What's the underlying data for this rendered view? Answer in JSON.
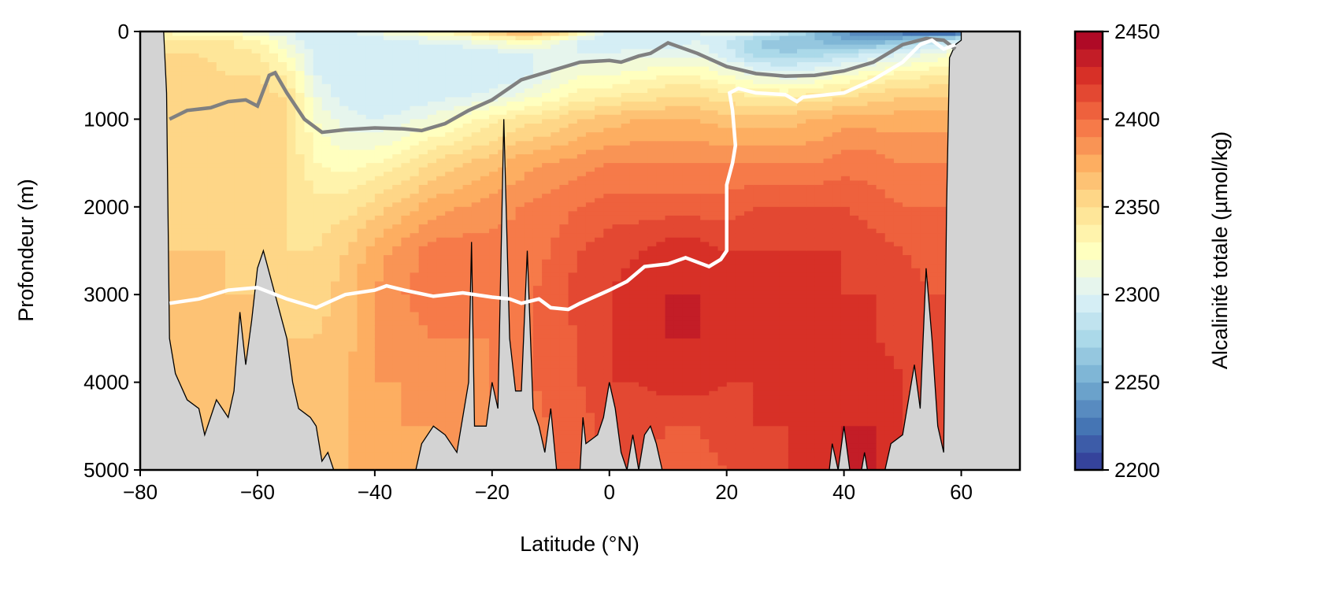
{
  "chart_data": {
    "type": "heatmap",
    "title": "",
    "xlabel": "Latitude (°N)",
    "ylabel": "Profondeur (m)",
    "colorbar_label": "Alcalinité totale (µmol/kg)",
    "xlim": [
      -80,
      70
    ],
    "ylim": [
      5000,
      0
    ],
    "xticks": [
      -80,
      -60,
      -40,
      -20,
      0,
      20,
      40,
      60
    ],
    "xtick_labels": [
      "−80",
      "−60",
      "−40",
      "−20",
      "0",
      "20",
      "40",
      "60"
    ],
    "yticks": [
      0,
      1000,
      2000,
      3000,
      4000,
      5000
    ],
    "ytick_labels": [
      "0",
      "1000",
      "2000",
      "3000",
      "4000",
      "5000"
    ],
    "clim": [
      2200,
      2450
    ],
    "level_step": 10,
    "cbar_ticks": [
      2200,
      2250,
      2300,
      2350,
      2400,
      2450
    ],
    "cbar_tick_labels": [
      "2200",
      "2250",
      "2300",
      "2350",
      "2400",
      "2450"
    ],
    "colormap": [
      "#313695",
      "#4575b4",
      "#74add1",
      "#abd9e9",
      "#e0f3f8",
      "#ffffbf",
      "#fee090",
      "#fdae61",
      "#f46d43",
      "#d73027",
      "#a50026"
    ],
    "land_color": "#d3d3d3",
    "grid_lat": [
      -76,
      -70,
      -65,
      -60,
      -55,
      -50,
      -45,
      -40,
      -35,
      -30,
      -25,
      -20,
      -15,
      -10,
      -5,
      0,
      5,
      10,
      15,
      20,
      25,
      30,
      35,
      40,
      45,
      50,
      55,
      59
    ],
    "grid_depth": [
      0,
      100,
      250,
      500,
      750,
      1000,
      1500,
      2000,
      2500,
      3000,
      3500,
      4000,
      4500,
      5000
    ],
    "values": [
      [
        2330,
        2340,
        2350,
        2355,
        2355,
        2355,
        2355,
        2355,
        2360,
        2360,
        2360,
        2360,
        2360,
        2360
      ],
      [
        2320,
        2340,
        2350,
        2355,
        2355,
        2355,
        2355,
        2355,
        2360,
        2360,
        2360,
        2360,
        2360,
        2360
      ],
      [
        2320,
        2340,
        2345,
        2350,
        2355,
        2355,
        2355,
        2355,
        2360,
        2360,
        2360,
        2360,
        2360,
        2360
      ],
      [
        2310,
        2330,
        2340,
        2350,
        2355,
        2355,
        2355,
        2355,
        2355,
        2360,
        2360,
        2360,
        2360,
        2360
      ],
      [
        2300,
        2310,
        2320,
        2340,
        2350,
        2350,
        2350,
        2350,
        2350,
        2355,
        2360,
        2360,
        2360,
        2360
      ],
      [
        2290,
        2290,
        2295,
        2300,
        2310,
        2320,
        2330,
        2345,
        2350,
        2355,
        2360,
        2365,
        2365,
        2365
      ],
      [
        2300,
        2290,
        2290,
        2290,
        2295,
        2305,
        2325,
        2345,
        2360,
        2365,
        2365,
        2370,
        2370,
        2370
      ],
      [
        2310,
        2295,
        2290,
        2290,
        2290,
        2300,
        2330,
        2355,
        2375,
        2380,
        2380,
        2380,
        2375,
        2370
      ],
      [
        2320,
        2300,
        2290,
        2290,
        2290,
        2305,
        2340,
        2365,
        2385,
        2390,
        2385,
        2380,
        2380,
        2375
      ],
      [
        2330,
        2305,
        2290,
        2290,
        2295,
        2315,
        2350,
        2375,
        2395,
        2395,
        2390,
        2385,
        2380,
        2380
      ],
      [
        2340,
        2310,
        2290,
        2290,
        2300,
        2325,
        2360,
        2380,
        2395,
        2395,
        2390,
        2385,
        2385,
        2385
      ],
      [
        2360,
        2320,
        2295,
        2290,
        2305,
        2335,
        2365,
        2385,
        2395,
        2395,
        2390,
        2390,
        2390,
        2390
      ],
      [
        2380,
        2330,
        2300,
        2295,
        2315,
        2345,
        2375,
        2390,
        2395,
        2395,
        2395,
        2395,
        2395,
        2395
      ],
      [
        2370,
        2320,
        2300,
        2310,
        2325,
        2350,
        2380,
        2395,
        2400,
        2405,
        2405,
        2405,
        2400,
        2400
      ],
      [
        2330,
        2300,
        2300,
        2320,
        2335,
        2360,
        2385,
        2400,
        2410,
        2415,
        2410,
        2410,
        2405,
        2405
      ],
      [
        2300,
        2290,
        2300,
        2320,
        2340,
        2365,
        2390,
        2405,
        2415,
        2420,
        2420,
        2420,
        2415,
        2410
      ],
      [
        2300,
        2290,
        2305,
        2325,
        2345,
        2370,
        2390,
        2405,
        2420,
        2425,
        2425,
        2420,
        2415,
        2410
      ],
      [
        2290,
        2290,
        2305,
        2330,
        2350,
        2370,
        2390,
        2405,
        2425,
        2430,
        2430,
        2425,
        2410,
        2405
      ],
      [
        2300,
        2300,
        2305,
        2330,
        2350,
        2370,
        2390,
        2405,
        2425,
        2430,
        2430,
        2425,
        2410,
        2405
      ],
      [
        2310,
        2290,
        2295,
        2320,
        2345,
        2365,
        2390,
        2405,
        2420,
        2425,
        2425,
        2420,
        2415,
        2410
      ],
      [
        2310,
        2270,
        2275,
        2310,
        2340,
        2365,
        2390,
        2410,
        2420,
        2420,
        2420,
        2420,
        2420,
        2415
      ],
      [
        2290,
        2260,
        2270,
        2305,
        2340,
        2365,
        2390,
        2410,
        2420,
        2425,
        2420,
        2420,
        2420,
        2420
      ],
      [
        2260,
        2260,
        2275,
        2310,
        2345,
        2370,
        2390,
        2410,
        2420,
        2425,
        2420,
        2420,
        2420,
        2425
      ],
      [
        2240,
        2250,
        2280,
        2320,
        2350,
        2375,
        2395,
        2410,
        2420,
        2420,
        2420,
        2425,
        2430,
        2430
      ],
      [
        2230,
        2250,
        2290,
        2330,
        2355,
        2375,
        2395,
        2405,
        2415,
        2420,
        2420,
        2430,
        2430,
        2430
      ],
      [
        2220,
        2260,
        2300,
        2335,
        2360,
        2375,
        2390,
        2400,
        2410,
        2415,
        2415,
        2420,
        2420,
        2420
      ],
      [
        2210,
        2280,
        2310,
        2340,
        2360,
        2375,
        2390,
        2400,
        2405,
        2410,
        2410,
        2410,
        2410,
        2410
      ],
      [
        2210,
        2290,
        2320,
        2340,
        2360,
        2375,
        2390,
        2400,
        2405,
        2410,
        2410,
        2410,
        2410,
        2410
      ]
    ],
    "bathymetry": [
      [
        -76,
        0
      ],
      [
        -75.5,
        700
      ],
      [
        -75,
        3500
      ],
      [
        -74,
        3900
      ],
      [
        -72,
        4200
      ],
      [
        -70,
        4300
      ],
      [
        -69,
        4600
      ],
      [
        -67,
        4200
      ],
      [
        -65,
        4400
      ],
      [
        -64,
        4100
      ],
      [
        -63,
        3200
      ],
      [
        -62,
        3800
      ],
      [
        -61,
        3300
      ],
      [
        -60,
        2700
      ],
      [
        -59,
        2500
      ],
      [
        -57,
        3000
      ],
      [
        -55,
        3500
      ],
      [
        -54,
        4000
      ],
      [
        -53,
        4300
      ],
      [
        -51,
        4400
      ],
      [
        -50,
        4500
      ],
      [
        -49,
        4900
      ],
      [
        -48,
        4800
      ],
      [
        -47,
        5000
      ],
      [
        -33,
        5000
      ],
      [
        -32,
        4700
      ],
      [
        -30,
        4500
      ],
      [
        -28,
        4600
      ],
      [
        -26,
        4800
      ],
      [
        -24,
        4000
      ],
      [
        -23.5,
        2400
      ],
      [
        -23,
        4500
      ],
      [
        -21,
        4500
      ],
      [
        -20,
        4000
      ],
      [
        -19,
        4300
      ],
      [
        -18,
        1000
      ],
      [
        -17,
        3500
      ],
      [
        -16,
        4100
      ],
      [
        -15,
        4100
      ],
      [
        -14,
        2500
      ],
      [
        -13,
        4300
      ],
      [
        -12,
        4500
      ],
      [
        -11,
        4800
      ],
      [
        -10,
        4300
      ],
      [
        -9,
        5000
      ],
      [
        -5,
        5000
      ],
      [
        -4.5,
        4400
      ],
      [
        -4,
        4700
      ],
      [
        -2,
        4600
      ],
      [
        -1,
        4400
      ],
      [
        0,
        4000
      ],
      [
        1,
        4300
      ],
      [
        2,
        4800
      ],
      [
        3,
        5000
      ],
      [
        4,
        4600
      ],
      [
        5,
        5000
      ],
      [
        6,
        4600
      ],
      [
        7,
        4500
      ],
      [
        8,
        4700
      ],
      [
        9,
        5000
      ],
      [
        37.5,
        5000
      ],
      [
        38,
        4700
      ],
      [
        39,
        5000
      ],
      [
        40,
        4500
      ],
      [
        41,
        5000
      ],
      [
        43,
        5000
      ],
      [
        43.5,
        4800
      ],
      [
        44,
        5000
      ],
      [
        47,
        5000
      ],
      [
        48,
        4700
      ],
      [
        50,
        4600
      ],
      [
        52,
        3800
      ],
      [
        53,
        4300
      ],
      [
        54,
        2700
      ],
      [
        55,
        3500
      ],
      [
        56,
        4500
      ],
      [
        57,
        4800
      ],
      [
        57.5,
        2000
      ],
      [
        58,
        300
      ],
      [
        59,
        150
      ],
      [
        60,
        100
      ],
      [
        60,
        0
      ],
      [
        70,
        0
      ],
      [
        70,
        5000
      ],
      [
        -80,
        5000
      ],
      [
        -80,
        0
      ]
    ],
    "contour_gray": [
      [
        -75,
        1000
      ],
      [
        -72,
        900
      ],
      [
        -68,
        870
      ],
      [
        -65,
        800
      ],
      [
        -62,
        780
      ],
      [
        -60,
        850
      ],
      [
        -58,
        500
      ],
      [
        -57,
        470
      ],
      [
        -55,
        700
      ],
      [
        -52,
        1000
      ],
      [
        -49,
        1150
      ],
      [
        -45,
        1120
      ],
      [
        -40,
        1100
      ],
      [
        -35,
        1110
      ],
      [
        -32,
        1130
      ],
      [
        -28,
        1050
      ],
      [
        -24,
        900
      ],
      [
        -20,
        780
      ],
      [
        -15,
        550
      ],
      [
        -10,
        450
      ],
      [
        -5,
        350
      ],
      [
        0,
        330
      ],
      [
        2,
        350
      ],
      [
        5,
        280
      ],
      [
        7,
        250
      ],
      [
        10,
        130
      ],
      [
        15,
        250
      ],
      [
        20,
        400
      ],
      [
        25,
        480
      ],
      [
        30,
        510
      ],
      [
        35,
        500
      ],
      [
        40,
        450
      ],
      [
        45,
        350
      ],
      [
        50,
        150
      ],
      [
        54,
        80
      ],
      [
        57,
        100
      ],
      [
        59,
        200
      ]
    ],
    "contour_white": [
      [
        -75,
        3100
      ],
      [
        -70,
        3050
      ],
      [
        -65,
        2950
      ],
      [
        -60,
        2920
      ],
      [
        -55,
        3050
      ],
      [
        -50,
        3150
      ],
      [
        -45,
        3000
      ],
      [
        -40,
        2950
      ],
      [
        -38,
        2900
      ],
      [
        -35,
        2950
      ],
      [
        -30,
        3020
      ],
      [
        -25,
        2980
      ],
      [
        -20,
        3030
      ],
      [
        -17,
        3050
      ],
      [
        -15,
        3100
      ],
      [
        -12,
        3050
      ],
      [
        -10,
        3150
      ],
      [
        -7,
        3170
      ],
      [
        -5,
        3100
      ],
      [
        0,
        2950
      ],
      [
        3,
        2850
      ],
      [
        6,
        2680
      ],
      [
        10,
        2650
      ],
      [
        13,
        2580
      ],
      [
        17,
        2680
      ],
      [
        19,
        2600
      ],
      [
        20,
        2500
      ],
      [
        20,
        1750
      ],
      [
        21,
        1500
      ],
      [
        21.5,
        1300
      ],
      [
        21,
        900
      ],
      [
        20.5,
        700
      ],
      [
        22,
        650
      ],
      [
        25,
        700
      ],
      [
        30,
        720
      ],
      [
        32,
        800
      ],
      [
        33,
        750
      ],
      [
        40,
        700
      ],
      [
        45,
        550
      ],
      [
        50,
        350
      ],
      [
        53,
        150
      ],
      [
        55,
        100
      ],
      [
        57,
        200
      ],
      [
        59,
        150
      ]
    ]
  }
}
